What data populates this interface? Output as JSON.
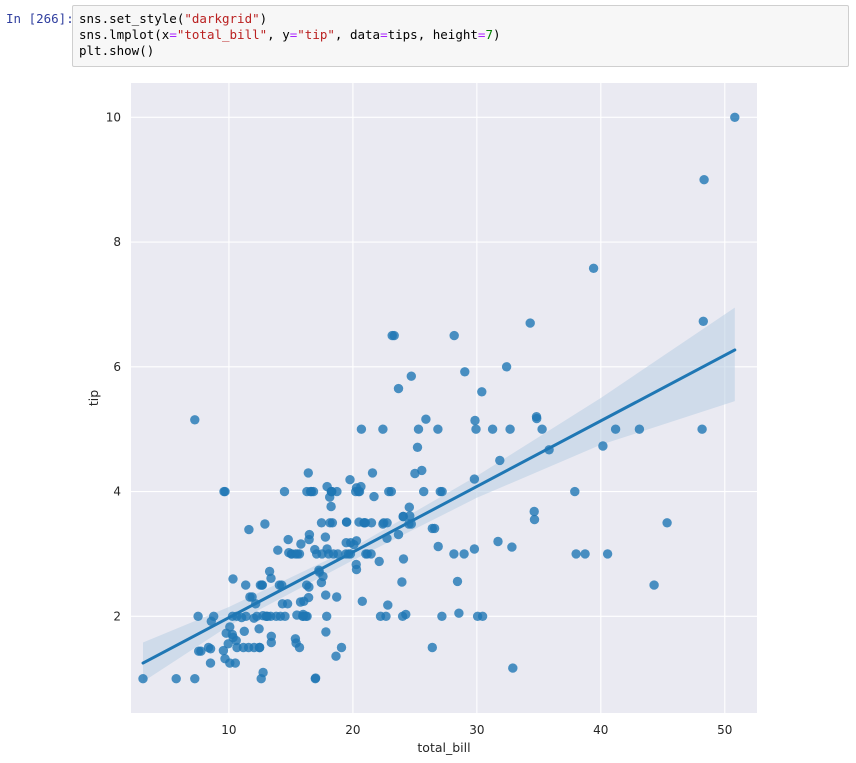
{
  "cell": {
    "prompt": "In [266]:",
    "code_lines": [
      [
        {
          "t": "sns.set_style("
        },
        {
          "t": "\"darkgrid\"",
          "c": "s"
        },
        {
          "t": ")"
        }
      ],
      [
        {
          "t": "sns.lmplot(x"
        },
        {
          "t": "=",
          "c": "o"
        },
        {
          "t": "\"total_bill\"",
          "c": "s"
        },
        {
          "t": ", y"
        },
        {
          "t": "=",
          "c": "o"
        },
        {
          "t": "\"tip\"",
          "c": "s"
        },
        {
          "t": ", data"
        },
        {
          "t": "=",
          "c": "o"
        },
        {
          "t": "tips, height"
        },
        {
          "t": "=",
          "c": "o"
        },
        {
          "t": "7",
          "c": "n"
        },
        {
          "t": ")"
        }
      ],
      [
        {
          "t": "plt.show()"
        }
      ]
    ]
  },
  "colors": {
    "background": "#eaeaf2",
    "grid": "#ffffff",
    "points": "#1f77b4",
    "line": "#1f77b4",
    "band": "#b8cde4"
  },
  "chart_data": {
    "type": "scatter",
    "title": "",
    "xlabel": "total_bill",
    "ylabel": "tip",
    "xlim": [
      2.1,
      52.6
    ],
    "ylim": [
      0.45,
      10.55
    ],
    "xticks": [
      10,
      20,
      30,
      40,
      50
    ],
    "yticks": [
      2,
      4,
      6,
      8,
      10
    ],
    "grid": true,
    "regression": {
      "x": [
        3.07,
        50.81
      ],
      "y": [
        1.25,
        6.27
      ],
      "band": [
        {
          "x": 3.07,
          "lo": 0.95,
          "hi": 1.58
        },
        {
          "x": 10,
          "lo": 1.85,
          "hi": 2.15
        },
        {
          "x": 20,
          "lo": 2.9,
          "hi": 3.1
        },
        {
          "x": 30,
          "lo": 3.9,
          "hi": 4.25
        },
        {
          "x": 40,
          "lo": 4.75,
          "hi": 5.5
        },
        {
          "x": 50.81,
          "lo": 5.45,
          "hi": 6.95
        }
      ]
    },
    "points": [
      [
        50.81,
        10.0
      ],
      [
        48.33,
        9.0
      ],
      [
        48.27,
        6.73
      ],
      [
        48.17,
        5.0
      ],
      [
        39.42,
        7.58
      ],
      [
        34.3,
        6.7
      ],
      [
        32.4,
        6.0
      ],
      [
        28.17,
        6.5
      ],
      [
        23.33,
        6.5
      ],
      [
        29.03,
        5.92
      ],
      [
        24.71,
        5.85
      ],
      [
        23.68,
        5.65
      ],
      [
        30.4,
        5.6
      ],
      [
        34.81,
        5.2
      ],
      [
        34.83,
        5.17
      ],
      [
        25.89,
        5.16
      ],
      [
        7.25,
        5.15
      ],
      [
        29.85,
        5.14
      ],
      [
        40.17,
        4.73
      ],
      [
        35.26,
        5.0
      ],
      [
        43.11,
        5.0
      ],
      [
        41.19,
        5.0
      ],
      [
        31.27,
        5.0
      ],
      [
        32.68,
        5.0
      ],
      [
        20.69,
        5.0
      ],
      [
        22.42,
        5.0
      ],
      [
        25.29,
        5.0
      ],
      [
        26.86,
        5.0
      ],
      [
        29.93,
        5.0
      ],
      [
        35.83,
        4.67
      ],
      [
        25.21,
        4.71
      ],
      [
        31.85,
        4.5
      ],
      [
        25.56,
        4.34
      ],
      [
        25.0,
        4.29
      ],
      [
        16.4,
        4.3
      ],
      [
        18.29,
        4.0
      ],
      [
        21.58,
        4.3
      ],
      [
        29.8,
        4.2
      ],
      [
        19.77,
        4.19
      ],
      [
        20.65,
        4.08
      ],
      [
        18.26,
        4.0
      ],
      [
        20.29,
        4.06
      ],
      [
        17.92,
        4.08
      ],
      [
        9.68,
        4.0
      ],
      [
        14.48,
        4.0
      ],
      [
        16.29,
        4.0
      ],
      [
        16.66,
        4.0
      ],
      [
        18.71,
        4.0
      ],
      [
        20.23,
        4.0
      ],
      [
        23.1,
        4.0
      ],
      [
        25.71,
        4.0
      ],
      [
        27.05,
        4.0
      ],
      [
        37.9,
        4.0
      ],
      [
        20.45,
        4.0
      ],
      [
        28.15,
        3.0
      ],
      [
        21.7,
        3.92
      ],
      [
        24.55,
        3.75
      ],
      [
        34.63,
        3.68
      ],
      [
        34.65,
        3.55
      ],
      [
        24.06,
        3.6
      ],
      [
        22.76,
        3.5
      ],
      [
        17.47,
        3.5
      ],
      [
        19.49,
        3.51
      ],
      [
        20.92,
        3.5
      ],
      [
        21.01,
        3.5
      ],
      [
        23.68,
        3.31
      ],
      [
        45.35,
        3.5
      ],
      [
        12.9,
        3.48
      ],
      [
        11.61,
        3.39
      ],
      [
        24.59,
        3.61
      ],
      [
        18.24,
        3.76
      ],
      [
        16.93,
        3.07
      ],
      [
        26.41,
        3.41
      ],
      [
        32.83,
        3.11
      ],
      [
        31.71,
        3.2
      ],
      [
        29.8,
        3.08
      ],
      [
        26.88,
        3.12
      ],
      [
        38.01,
        3.0
      ],
      [
        38.73,
        3.0
      ],
      [
        40.55,
        3.0
      ],
      [
        28.97,
        3.0
      ],
      [
        20.08,
        3.15
      ],
      [
        21.5,
        3.5
      ],
      [
        20.49,
        3.51
      ],
      [
        18.35,
        3.5
      ],
      [
        17.51,
        3.0
      ],
      [
        16.49,
        3.31
      ],
      [
        15.69,
        3.0
      ],
      [
        15.04,
        3.0
      ],
      [
        14.78,
        3.23
      ],
      [
        14.07,
        2.5
      ],
      [
        13.94,
        3.06
      ],
      [
        13.39,
        2.61
      ],
      [
        12.69,
        2.5
      ],
      [
        12.66,
        2.5
      ],
      [
        11.87,
        2.31
      ],
      [
        11.35,
        2.5
      ],
      [
        10.33,
        2.6
      ],
      [
        10.29,
        2.0
      ],
      [
        10.07,
        1.83
      ],
      [
        9.55,
        1.45
      ],
      [
        9.68,
        1.32
      ],
      [
        9.94,
        1.56
      ],
      [
        8.77,
        2.0
      ],
      [
        8.51,
        1.25
      ],
      [
        8.52,
        1.48
      ],
      [
        8.35,
        1.5
      ],
      [
        7.74,
        1.44
      ],
      [
        7.56,
        1.44
      ],
      [
        7.51,
        2.0
      ],
      [
        5.75,
        1.0
      ],
      [
        3.07,
        1.0
      ],
      [
        7.25,
        1.0
      ],
      [
        10.34,
        1.66
      ],
      [
        10.27,
        1.71
      ],
      [
        11.02,
        1.98
      ],
      [
        10.63,
        2.0
      ],
      [
        11.24,
        1.76
      ],
      [
        11.59,
        1.5
      ],
      [
        12.03,
        1.5
      ],
      [
        12.43,
        1.8
      ],
      [
        12.16,
        2.2
      ],
      [
        12.54,
        2.5
      ],
      [
        12.74,
        2.01
      ],
      [
        13.0,
        2.0
      ],
      [
        13.28,
        2.72
      ],
      [
        13.81,
        2.0
      ],
      [
        13.42,
        1.58
      ],
      [
        13.42,
        1.68
      ],
      [
        14.26,
        2.5
      ],
      [
        14.52,
        2.0
      ],
      [
        14.83,
        3.02
      ],
      [
        15.06,
        3.0
      ],
      [
        15.36,
        1.64
      ],
      [
        15.38,
        3.0
      ],
      [
        15.48,
        2.02
      ],
      [
        15.53,
        3.0
      ],
      [
        15.69,
        1.5
      ],
      [
        15.77,
        2.23
      ],
      [
        15.81,
        3.16
      ],
      [
        15.95,
        2.0
      ],
      [
        16.0,
        2.0
      ],
      [
        16.21,
        2.0
      ],
      [
        16.27,
        2.5
      ],
      [
        16.31,
        2.0
      ],
      [
        16.43,
        2.3
      ],
      [
        16.45,
        2.47
      ],
      [
        16.58,
        4.0
      ],
      [
        16.97,
        1.0
      ],
      [
        17.07,
        3.0
      ],
      [
        17.29,
        2.71
      ],
      [
        17.46,
        2.54
      ],
      [
        17.59,
        2.64
      ],
      [
        17.78,
        3.27
      ],
      [
        17.81,
        2.34
      ],
      [
        17.82,
        1.75
      ],
      [
        17.89,
        2.0
      ],
      [
        18.15,
        3.5
      ],
      [
        18.28,
        4.0
      ],
      [
        18.43,
        3.0
      ],
      [
        18.64,
        1.36
      ],
      [
        18.69,
        2.31
      ],
      [
        18.78,
        3.0
      ],
      [
        19.08,
        1.5
      ],
      [
        19.44,
        3.0
      ],
      [
        19.65,
        3.0
      ],
      [
        19.81,
        3.0
      ],
      [
        19.82,
        3.18
      ],
      [
        20.27,
        2.83
      ],
      [
        20.29,
        2.75
      ],
      [
        20.53,
        4.0
      ],
      [
        20.76,
        2.24
      ],
      [
        20.9,
        3.5
      ],
      [
        21.16,
        3.0
      ],
      [
        21.47,
        3.0
      ],
      [
        22.12,
        2.88
      ],
      [
        22.23,
        2.0
      ],
      [
        22.67,
        2.0
      ],
      [
        22.82,
        2.18
      ],
      [
        22.49,
        3.5
      ],
      [
        22.75,
        3.25
      ],
      [
        23.17,
        6.5
      ],
      [
        23.95,
        2.55
      ],
      [
        24.01,
        2.0
      ],
      [
        24.08,
        2.92
      ],
      [
        24.27,
        2.03
      ],
      [
        24.52,
        3.48
      ],
      [
        26.59,
        3.41
      ],
      [
        27.18,
        2.0
      ],
      [
        27.2,
        4.0
      ],
      [
        28.44,
        2.56
      ],
      [
        28.55,
        2.05
      ],
      [
        30.06,
        2.0
      ],
      [
        30.46,
        2.0
      ],
      [
        32.9,
        1.17
      ],
      [
        44.3,
        2.5
      ],
      [
        26.41,
        1.5
      ],
      [
        12.6,
        1.0
      ],
      [
        12.76,
        1.1
      ],
      [
        13.37,
        2.0
      ],
      [
        10.51,
        1.25
      ],
      [
        9.78,
        1.73
      ],
      [
        10.65,
        1.5
      ],
      [
        11.38,
        2.0
      ],
      [
        11.17,
        1.5
      ],
      [
        12.46,
        1.5
      ],
      [
        12.48,
        1.5
      ],
      [
        12.02,
        1.97
      ],
      [
        13.13,
        2.0
      ],
      [
        14.15,
        2.0
      ],
      [
        14.31,
        2.2
      ],
      [
        15.42,
        1.57
      ],
      [
        16.99,
        1.01
      ],
      [
        17.26,
        2.74
      ],
      [
        16.82,
        4.0
      ],
      [
        16.04,
        2.24
      ],
      [
        16.47,
        3.23
      ],
      [
        17.92,
        3.08
      ],
      [
        18.04,
        3.0
      ],
      [
        19.49,
        3.51
      ],
      [
        20.29,
        3.21
      ],
      [
        21.04,
        3.0
      ],
      [
        22.42,
        3.48
      ],
      [
        24.71,
        3.48
      ],
      [
        24.06,
        3.6
      ],
      [
        22.9,
        4.0
      ],
      [
        19.46,
        3.18
      ],
      [
        18.13,
        3.91
      ],
      [
        15.98,
        2.03
      ],
      [
        14.73,
        2.2
      ],
      [
        13.03,
        2.0
      ],
      [
        12.26,
        2.0
      ],
      [
        11.69,
        2.31
      ],
      [
        10.59,
        1.61
      ],
      [
        10.07,
        1.25
      ],
      [
        9.6,
        4.0
      ],
      [
        8.58,
        1.92
      ]
    ]
  }
}
